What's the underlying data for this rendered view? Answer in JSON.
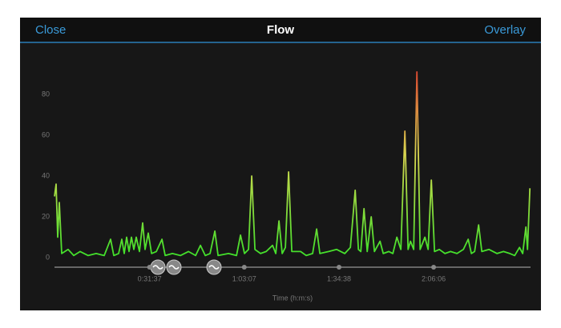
{
  "header": {
    "left_button": "Close",
    "title": "Flow",
    "right_button": "Overlay"
  },
  "chart_data": {
    "type": "line",
    "x_label": "Time (h:m:s)",
    "x": [
      0,
      32,
      64,
      96,
      144,
      272,
      384,
      512,
      672,
      832,
      992,
      1120,
      1184,
      1280,
      1344,
      1392,
      1440,
      1488,
      1536,
      1584,
      1632,
      1696,
      1760,
      1808,
      1872,
      1936,
      2032,
      2144,
      2208,
      2352,
      2512,
      2672,
      2816,
      2912,
      3008,
      3104,
      3200,
      3264,
      3472,
      3632,
      3712,
      3792,
      3872,
      3936,
      4000,
      4112,
      4224,
      4352,
      4416,
      4480,
      4544,
      4608,
      4672,
      4736,
      4912,
      5024,
      5152,
      5232,
      5296,
      5472,
      5632,
      5792,
      5904,
      6000,
      6064,
      6112,
      6176,
      6240,
      6320,
      6384,
      6496,
      6560,
      6672,
      6752,
      6832,
      6912,
      6992,
      7056,
      7104,
      7168,
      7232,
      7296,
      7392,
      7456,
      7520,
      7584,
      7680,
      7792,
      7904,
      8032,
      8160,
      8256,
      8320,
      8384,
      8464,
      8528,
      8672,
      8832,
      8960,
      9088,
      9184,
      9280,
      9344,
      9408,
      9440,
      9488
    ],
    "values": [
      30,
      36,
      10,
      27,
      2,
      4,
      1,
      3,
      1,
      2,
      1,
      9,
      1,
      2,
      9,
      2,
      10,
      3,
      10,
      4,
      10,
      3,
      17,
      4,
      12,
      2,
      3,
      9,
      1,
      2,
      1,
      3,
      1,
      6,
      1,
      2,
      13,
      1,
      2,
      1,
      11,
      2,
      4,
      40,
      4,
      2,
      3,
      6,
      2,
      18,
      2,
      5,
      42,
      3,
      3,
      1,
      2,
      14,
      2,
      3,
      4,
      2,
      5,
      33,
      4,
      3,
      24,
      3,
      20,
      3,
      8,
      2,
      3,
      2,
      10,
      4,
      62,
      4,
      8,
      4,
      91,
      4,
      10,
      4,
      38,
      3,
      4,
      2,
      3,
      2,
      4,
      9,
      2,
      3,
      16,
      3,
      4,
      2,
      3,
      2,
      1,
      5,
      2,
      15,
      4,
      34
    ],
    "gradient_colors": [
      "#3ee02a",
      "#d8d850",
      "#e02a2a"
    ],
    "xlim": [
      0,
      9500
    ],
    "xticks": [
      {
        "value": 1897,
        "label": "0:31:37"
      },
      {
        "value": 3787,
        "label": "1:03:07"
      },
      {
        "value": 5678,
        "label": "1:34:38"
      },
      {
        "value": 7566,
        "label": "2:06:06"
      }
    ],
    "ylim": [
      0,
      100
    ],
    "yticks": [
      0,
      20,
      40,
      60,
      80
    ],
    "grid": false
  }
}
